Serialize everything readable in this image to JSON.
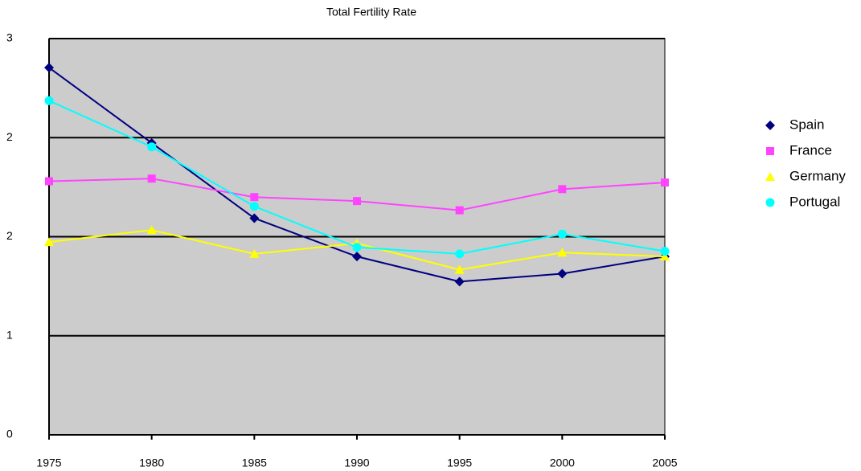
{
  "chart_data": {
    "type": "line",
    "title": "Total Fertility Rate",
    "x": [
      1975,
      1980,
      1985,
      1990,
      1995,
      2000,
      2005
    ],
    "xlim": [
      1975,
      2005
    ],
    "xticks": [
      1975,
      1980,
      1985,
      1990,
      1995,
      2000,
      2005
    ],
    "ylim": [
      0,
      3
    ],
    "yticks": [
      0,
      {
        "value": 0.75,
        "label": "1"
      },
      {
        "value": 1.5,
        "label": "2"
      },
      {
        "value": 2.25,
        "label": "2"
      },
      3
    ],
    "grid": true,
    "legend": "right",
    "series": [
      {
        "name": "Spain",
        "color": "#000080",
        "marker": "diamond",
        "values": [
          2.78,
          2.21,
          1.64,
          1.35,
          1.16,
          1.22,
          1.35
        ]
      },
      {
        "name": "France",
        "color": "#ff44ff",
        "marker": "square",
        "values": [
          1.92,
          1.94,
          1.8,
          1.77,
          1.7,
          1.86,
          1.91
        ]
      },
      {
        "name": "Germany",
        "color": "#ffff00",
        "marker": "triangle",
        "values": [
          1.46,
          1.55,
          1.37,
          1.45,
          1.25,
          1.38,
          1.35
        ]
      },
      {
        "name": "Portugal",
        "color": "#00ffff",
        "marker": "circle",
        "values": [
          2.53,
          2.18,
          1.73,
          1.42,
          1.37,
          1.52,
          1.39
        ]
      }
    ]
  }
}
